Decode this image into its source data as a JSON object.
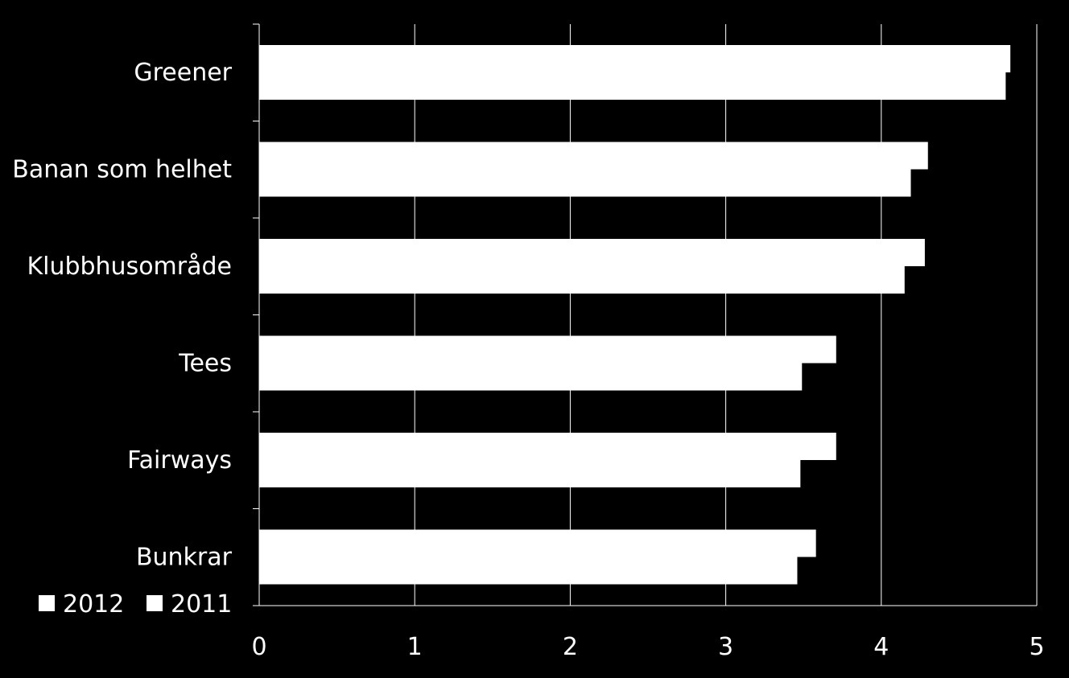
{
  "chart_data": {
    "type": "bar",
    "orientation": "horizontal",
    "categories": [
      "Greener",
      "Banan som helhet",
      "Klubbhusområde",
      "Tees",
      "Fairways",
      "Bunkrar"
    ],
    "series": [
      {
        "name": "2012",
        "values": [
          4.83,
          4.3,
          4.28,
          3.71,
          3.71,
          3.58
        ]
      },
      {
        "name": "2011",
        "values": [
          4.8,
          4.19,
          4.15,
          3.49,
          3.48,
          3.46
        ]
      }
    ],
    "xlim": [
      0,
      5
    ],
    "xticks": [
      "0",
      "1",
      "2",
      "3",
      "4",
      "5"
    ],
    "grid": true,
    "legend_position": "bottom-left",
    "colors": {
      "background": "#000000",
      "bars": "#ffffff",
      "text": "#ffffff",
      "grid": "#ffffff"
    }
  }
}
